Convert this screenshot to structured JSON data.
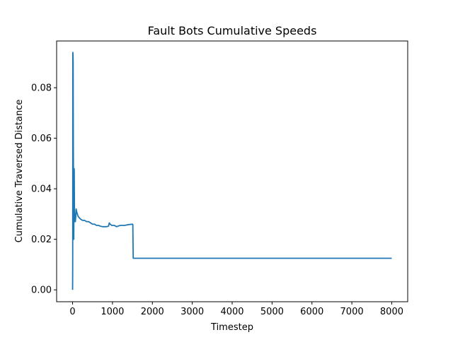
{
  "chart_data": {
    "type": "line",
    "title": "Fault Bots Cumulative Speeds",
    "xlabel": "Timestep",
    "ylabel": "Cumulative Traversed Distance",
    "xlim": [
      -400,
      8400
    ],
    "ylim": [
      -0.0047,
      0.0985
    ],
    "xticks": [
      0,
      1000,
      2000,
      3000,
      4000,
      5000,
      6000,
      7000,
      8000
    ],
    "xtick_labels": [
      "0",
      "1000",
      "2000",
      "3000",
      "4000",
      "5000",
      "6000",
      "7000",
      "8000"
    ],
    "yticks": [
      0.0,
      0.02,
      0.04,
      0.06,
      0.08
    ],
    "ytick_labels": [
      "0.00",
      "0.02",
      "0.04",
      "0.06",
      "0.08"
    ],
    "grid": false,
    "legend": "none",
    "series": [
      {
        "color": "#1f77b4",
        "x": [
          0,
          3,
          6,
          10,
          14,
          18,
          22,
          26,
          30,
          34,
          38,
          42,
          46,
          50,
          55,
          60,
          65,
          70,
          75,
          80,
          90,
          100,
          120,
          140,
          170,
          200,
          250,
          300,
          350,
          400,
          450,
          500,
          550,
          600,
          650,
          700,
          750,
          800,
          850,
          900,
          920,
          940,
          960,
          980,
          1000,
          1050,
          1100,
          1150,
          1200,
          1300,
          1400,
          1500,
          1510,
          1520,
          2000,
          3000,
          4000,
          5000,
          6000,
          7000,
          8000
        ],
        "y": [
          0.0,
          0.01,
          0.094,
          0.093,
          0.09,
          0.06,
          0.045,
          0.022,
          0.02,
          0.032,
          0.048,
          0.047,
          0.034,
          0.03,
          0.027,
          0.028,
          0.03,
          0.027,
          0.028,
          0.029,
          0.032,
          0.031,
          0.03,
          0.029,
          0.0285,
          0.028,
          0.0275,
          0.0275,
          0.027,
          0.027,
          0.0265,
          0.026,
          0.026,
          0.0255,
          0.0255,
          0.0252,
          0.025,
          0.025,
          0.025,
          0.0252,
          0.0265,
          0.026,
          0.0258,
          0.0255,
          0.0255,
          0.0255,
          0.025,
          0.0253,
          0.0255,
          0.0255,
          0.0258,
          0.026,
          0.0259,
          0.0125,
          0.0125,
          0.0125,
          0.0125,
          0.0125,
          0.0125,
          0.0125,
          0.0125
        ]
      }
    ]
  }
}
